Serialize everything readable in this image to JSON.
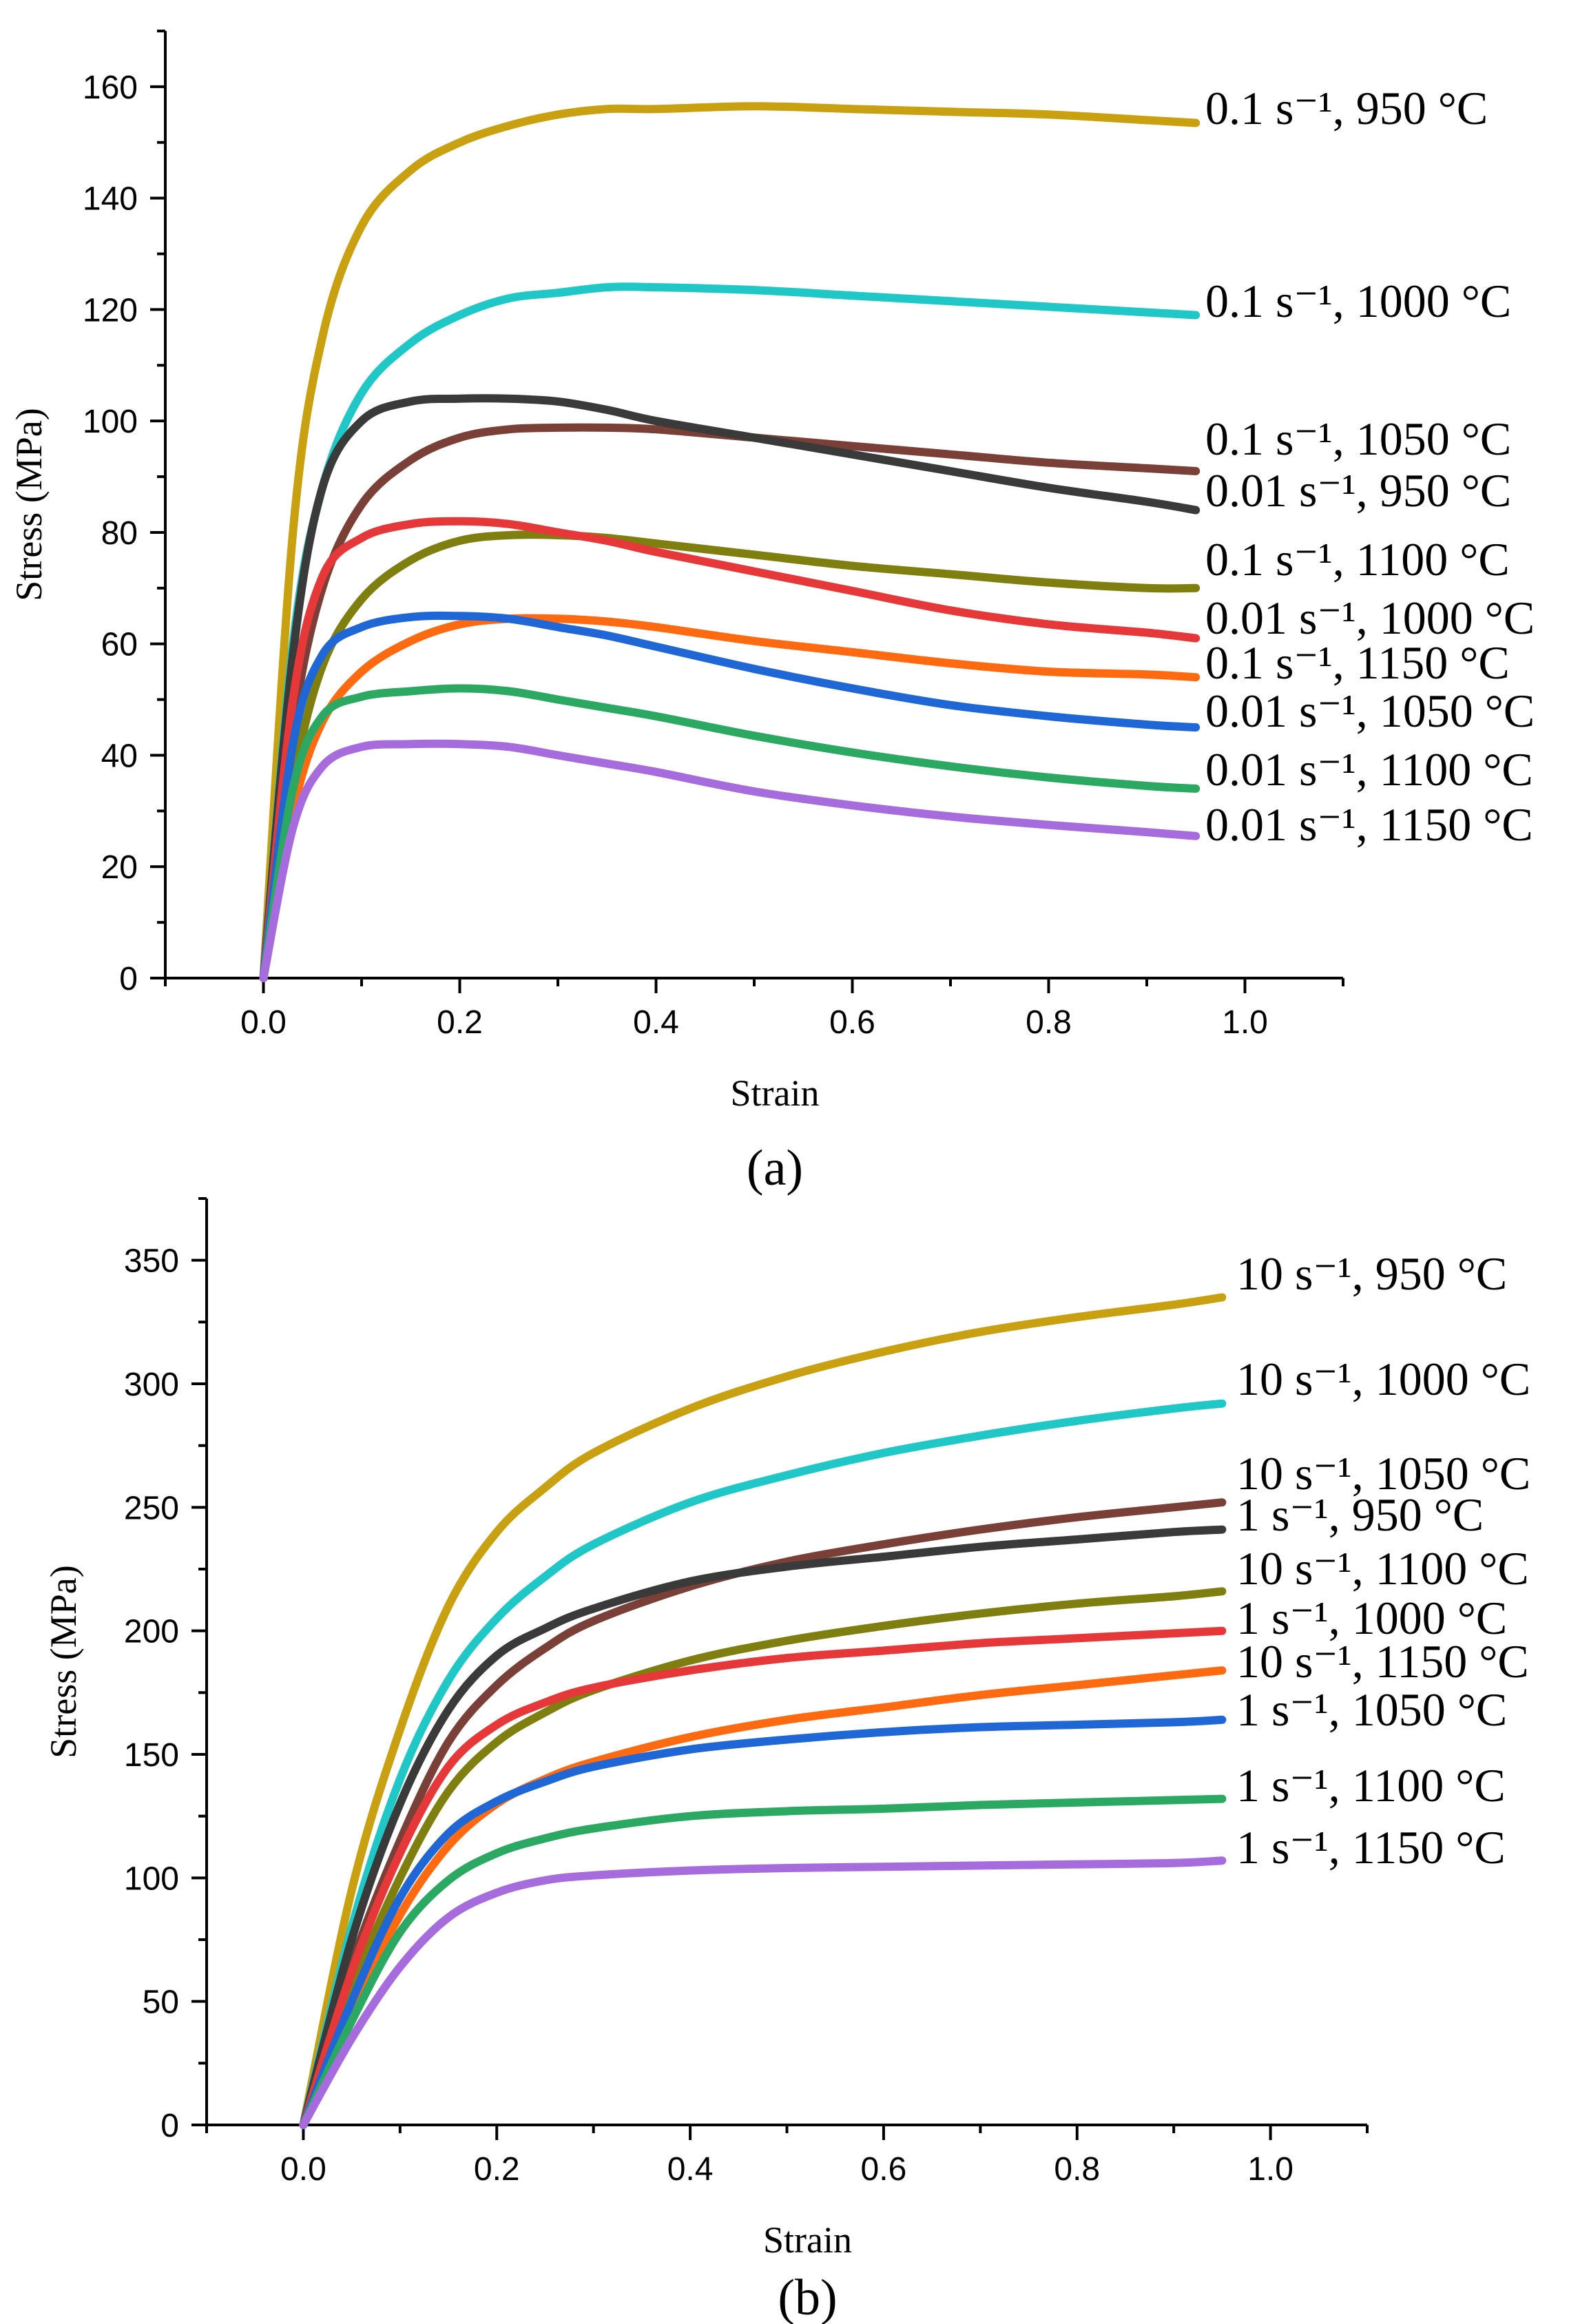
{
  "chart_data": [
    {
      "type": "line",
      "panel_label": "(a)",
      "xlabel": "Strain",
      "ylabel": "Stress (MPa)",
      "xlim": [
        -0.1,
        1.1
      ],
      "ylim": [
        0,
        170
      ],
      "xticks": [
        0.0,
        0.2,
        0.4,
        0.6,
        0.8,
        1.0
      ],
      "xtick_labels": [
        "0.0",
        "0.2",
        "0.4",
        "0.6",
        "0.8",
        "1.0"
      ],
      "yticks": [
        0,
        20,
        40,
        60,
        80,
        100,
        120,
        140,
        160
      ],
      "ytick_labels": [
        "0",
        "20",
        "40",
        "60",
        "80",
        "100",
        "120",
        "140",
        "160"
      ],
      "series": [
        {
          "name": "0.1 s⁻¹, 950 °C",
          "color": "#C9A010",
          "label_value": 154,
          "x": [
            0,
            0.03,
            0.06,
            0.1,
            0.15,
            0.2,
            0.25,
            0.3,
            0.35,
            0.4,
            0.5,
            0.6,
            0.7,
            0.8,
            0.9,
            0.95
          ],
          "y": [
            0,
            80,
            115,
            135,
            145,
            150,
            153,
            155,
            156,
            156,
            156.5,
            156,
            155.5,
            155,
            154,
            153.5
          ]
        },
        {
          "name": "0.1 s⁻¹, 1000 °C",
          "color": "#1FC7C7",
          "label_value": 119,
          "x": [
            0,
            0.03,
            0.06,
            0.1,
            0.15,
            0.2,
            0.25,
            0.3,
            0.35,
            0.4,
            0.5,
            0.6,
            0.7,
            0.8,
            0.9,
            0.95
          ],
          "y": [
            0,
            60,
            88,
            105,
            114,
            119,
            122,
            123,
            124,
            124,
            123.5,
            122.5,
            121.5,
            120.5,
            119.5,
            119
          ]
        },
        {
          "name": "0.1 s⁻¹, 1050 °C",
          "color": "#7A4038",
          "label_value": 91,
          "x": [
            0,
            0.03,
            0.06,
            0.1,
            0.15,
            0.2,
            0.25,
            0.3,
            0.35,
            0.4,
            0.5,
            0.6,
            0.7,
            0.8,
            0.9,
            0.95
          ],
          "y": [
            0,
            45,
            70,
            85,
            93,
            97,
            98.5,
            98.8,
            98.8,
            98.5,
            97,
            95.5,
            94,
            92.5,
            91.5,
            91
          ]
        },
        {
          "name": "0.01 s⁻¹, 950 °C",
          "color": "#3A3A3A",
          "label_value": 84,
          "x": [
            0,
            0.03,
            0.06,
            0.1,
            0.15,
            0.2,
            0.25,
            0.3,
            0.35,
            0.4,
            0.5,
            0.6,
            0.7,
            0.8,
            0.9,
            0.95
          ],
          "y": [
            0,
            58,
            88,
            100,
            103.5,
            104,
            104,
            103.5,
            102,
            100,
            97,
            94,
            91,
            88,
            85.5,
            84
          ]
        },
        {
          "name": "0.1 s⁻¹, 1100 °C",
          "color": "#7F7F10",
          "label_value": 70,
          "x": [
            0,
            0.03,
            0.06,
            0.1,
            0.15,
            0.2,
            0.25,
            0.3,
            0.35,
            0.4,
            0.5,
            0.6,
            0.7,
            0.8,
            0.9,
            0.95
          ],
          "y": [
            0,
            35,
            56,
            68,
            75,
            78.5,
            79.5,
            79.5,
            79,
            78,
            76,
            74,
            72.5,
            71,
            70,
            70
          ]
        },
        {
          "name": "0.01 s⁻¹, 1000 °C",
          "color": "#E63838",
          "label_value": 61,
          "x": [
            0,
            0.03,
            0.06,
            0.1,
            0.15,
            0.2,
            0.25,
            0.3,
            0.35,
            0.4,
            0.5,
            0.6,
            0.7,
            0.8,
            0.9,
            0.95
          ],
          "y": [
            0,
            50,
            72,
            79,
            81.5,
            82,
            81.5,
            80,
            78.5,
            76.5,
            73,
            69.5,
            66,
            63.5,
            62,
            61
          ]
        },
        {
          "name": "0.1 s⁻¹, 1150 °C",
          "color": "#FF6A10",
          "label_value": 54,
          "x": [
            0,
            0.03,
            0.06,
            0.1,
            0.15,
            0.2,
            0.25,
            0.3,
            0.35,
            0.4,
            0.5,
            0.6,
            0.7,
            0.8,
            0.9,
            0.95
          ],
          "y": [
            0,
            30,
            46,
            55,
            60.5,
            63.5,
            64.5,
            64.5,
            64,
            63,
            60.5,
            58.5,
            56.5,
            55,
            54.5,
            54
          ]
        },
        {
          "name": "0.01 s⁻¹, 1050 °C",
          "color": "#1F66D6",
          "label_value": 45,
          "x": [
            0,
            0.03,
            0.06,
            0.1,
            0.15,
            0.2,
            0.25,
            0.3,
            0.35,
            0.4,
            0.5,
            0.6,
            0.7,
            0.8,
            0.9,
            0.95
          ],
          "y": [
            0,
            42,
            58,
            63,
            64.8,
            65,
            64.5,
            63,
            61.5,
            59.5,
            55.5,
            52,
            49,
            47,
            45.5,
            45
          ]
        },
        {
          "name": "0.01 s⁻¹, 1100 °C",
          "color": "#2BA862",
          "label_value": 34,
          "x": [
            0,
            0.03,
            0.06,
            0.1,
            0.15,
            0.2,
            0.25,
            0.3,
            0.35,
            0.4,
            0.5,
            0.6,
            0.7,
            0.8,
            0.9,
            0.95
          ],
          "y": [
            0,
            34,
            47,
            50.5,
            51.5,
            52,
            51.5,
            50,
            48.5,
            47,
            43.5,
            40.5,
            38,
            36,
            34.5,
            34
          ]
        },
        {
          "name": "0.01 s⁻¹, 1150 °C",
          "color": "#A66BDC",
          "label_value": 25.5,
          "x": [
            0,
            0.03,
            0.06,
            0.1,
            0.15,
            0.2,
            0.25,
            0.3,
            0.35,
            0.4,
            0.5,
            0.6,
            0.7,
            0.8,
            0.9,
            0.95
          ],
          "y": [
            0,
            27,
            38,
            41.5,
            42,
            42,
            41.5,
            40,
            38.5,
            37,
            33.5,
            31,
            29,
            27.5,
            26.2,
            25.5
          ]
        }
      ]
    },
    {
      "type": "line",
      "panel_label": "(b)",
      "xlabel": "Strain",
      "ylabel": "Stress (MPa)",
      "xlim": [
        -0.1,
        1.1
      ],
      "ylim": [
        0,
        375
      ],
      "xticks": [
        0.0,
        0.2,
        0.4,
        0.6,
        0.8,
        1.0
      ],
      "xtick_labels": [
        "0.0",
        "0.2",
        "0.4",
        "0.6",
        "0.8",
        "1.0"
      ],
      "yticks": [
        0,
        50,
        100,
        150,
        200,
        250,
        300,
        350
      ],
      "ytick_labels": [
        "0",
        "50",
        "100",
        "150",
        "200",
        "250",
        "300",
        "350"
      ],
      "series": [
        {
          "name": "10 s⁻¹, 950 °C",
          "color": "#C9A010",
          "label_value": 338,
          "x": [
            0,
            0.05,
            0.1,
            0.15,
            0.2,
            0.25,
            0.3,
            0.4,
            0.5,
            0.6,
            0.7,
            0.8,
            0.9,
            0.95
          ],
          "y": [
            0,
            95,
            160,
            210,
            240,
            258,
            272,
            290,
            303,
            313,
            321,
            327,
            332,
            335
          ]
        },
        {
          "name": "10 s⁻¹, 1000 °C",
          "color": "#1FC7C7",
          "label_value": 295,
          "x": [
            0,
            0.05,
            0.1,
            0.15,
            0.2,
            0.25,
            0.3,
            0.4,
            0.5,
            0.6,
            0.7,
            0.8,
            0.9,
            0.95
          ],
          "y": [
            0,
            80,
            140,
            180,
            205,
            222,
            235,
            252,
            263,
            272,
            279,
            285,
            290,
            292
          ]
        },
        {
          "name": "10 s⁻¹, 1050 °C",
          "color": "#7A4038",
          "label_value": 256,
          "x": [
            0,
            0.05,
            0.1,
            0.15,
            0.2,
            0.25,
            0.3,
            0.4,
            0.5,
            0.6,
            0.7,
            0.8,
            0.9,
            0.95
          ],
          "y": [
            0,
            65,
            115,
            155,
            178,
            193,
            204,
            218,
            228,
            235,
            241,
            246,
            250,
            252
          ]
        },
        {
          "name": "1 s⁻¹, 950 °C",
          "color": "#3A3A3A",
          "label_value": 240,
          "x": [
            0,
            0.05,
            0.1,
            0.15,
            0.2,
            0.25,
            0.3,
            0.4,
            0.5,
            0.6,
            0.7,
            0.8,
            0.9,
            0.95
          ],
          "y": [
            0,
            75,
            130,
            168,
            190,
            201,
            209,
            220,
            226,
            230,
            234,
            237,
            240,
            241
          ]
        },
        {
          "name": "10 s⁻¹, 1100 °C",
          "color": "#7F7F10",
          "label_value": 219,
          "x": [
            0,
            0.05,
            0.1,
            0.15,
            0.2,
            0.25,
            0.3,
            0.4,
            0.5,
            0.6,
            0.7,
            0.8,
            0.9,
            0.95
          ],
          "y": [
            0,
            55,
            100,
            135,
            155,
            167,
            176,
            188,
            196,
            202,
            207,
            211,
            214,
            216
          ]
        },
        {
          "name": "1 s⁻¹, 1000 °C",
          "color": "#E63838",
          "label_value": 200,
          "x": [
            0,
            0.05,
            0.1,
            0.15,
            0.2,
            0.25,
            0.3,
            0.4,
            0.5,
            0.6,
            0.7,
            0.8,
            0.9,
            0.95
          ],
          "y": [
            0,
            62,
            110,
            145,
            162,
            171,
            177,
            184,
            189,
            192,
            195,
            197,
            199,
            200
          ]
        },
        {
          "name": "10 s⁻¹, 1150 °C",
          "color": "#FF6A10",
          "label_value": 186,
          "x": [
            0,
            0.05,
            0.1,
            0.15,
            0.2,
            0.25,
            0.3,
            0.4,
            0.5,
            0.6,
            0.7,
            0.8,
            0.9,
            0.95
          ],
          "y": [
            0,
            45,
            85,
            113,
            130,
            140,
            147,
            157,
            164,
            169,
            174,
            178,
            182,
            184
          ]
        },
        {
          "name": "1 s⁻¹, 1050 °C",
          "color": "#1F66D6",
          "label_value": 164,
          "x": [
            0,
            0.05,
            0.1,
            0.15,
            0.2,
            0.25,
            0.3,
            0.4,
            0.5,
            0.6,
            0.7,
            0.8,
            0.9,
            0.95
          ],
          "y": [
            0,
            50,
            92,
            118,
            131,
            139,
            145,
            152,
            156,
            159,
            161,
            162,
            163,
            164
          ]
        },
        {
          "name": "1 s⁻¹, 1100 °C",
          "color": "#2BA862",
          "label_value": 132,
          "x": [
            0,
            0.05,
            0.1,
            0.15,
            0.2,
            0.25,
            0.3,
            0.4,
            0.5,
            0.6,
            0.7,
            0.8,
            0.9,
            0.95
          ],
          "y": [
            0,
            42,
            78,
            99,
            110,
            116,
            120,
            125,
            127,
            128,
            129.5,
            130.5,
            131.5,
            132
          ]
        },
        {
          "name": "1 s⁻¹, 1150 °C",
          "color": "#A66BDC",
          "label_value": 107,
          "x": [
            0,
            0.05,
            0.1,
            0.15,
            0.2,
            0.25,
            0.3,
            0.4,
            0.5,
            0.6,
            0.7,
            0.8,
            0.9,
            0.95
          ],
          "y": [
            0,
            35,
            64,
            84,
            94,
            99,
            101,
            103,
            104,
            104.5,
            105,
            105.5,
            106,
            107
          ]
        }
      ]
    }
  ]
}
